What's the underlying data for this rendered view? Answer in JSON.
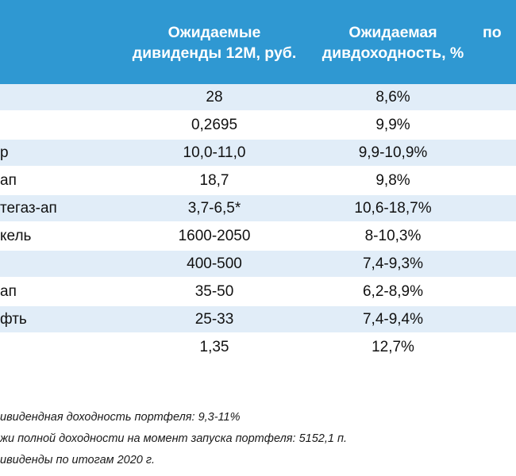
{
  "header": {
    "dividends_label": "Ожидаемые\nдивиденды 12М, руб.",
    "yield_label": "Ожидаемая\nдивдоходность, %",
    "cut_label": "по"
  },
  "rows": [
    {
      "name": "",
      "dividends": "28",
      "yield": "8,6%"
    },
    {
      "name": "",
      "dividends": "0,2695",
      "yield": "9,9%"
    },
    {
      "name": "р",
      "dividends": "10,0-11,0",
      "yield": "9,9-10,9%"
    },
    {
      "name": "ап",
      "dividends": "18,7",
      "yield": "9,8%"
    },
    {
      "name": "тегаз-ап",
      "dividends": "3,7-6,5*",
      "yield": "10,6-18,7%"
    },
    {
      "name": "кель",
      "dividends": "1600-2050",
      "yield": "8-10,3%"
    },
    {
      "name": "",
      "dividends": "400-500",
      "yield": "7,4-9,3%"
    },
    {
      "name": "ап",
      "dividends": "35-50",
      "yield": "6,2-8,9%"
    },
    {
      "name": "фть",
      "dividends": "25-33",
      "yield": "7,4-9,4%"
    },
    {
      "name": "",
      "dividends": "1,35",
      "yield": "12,7%"
    }
  ],
  "notes": [
    "ивидендная доходность портфеля: 9,3-11%",
    "жи полной доходности на момент запуска портфеля: 5152,1 п.",
    "ивиденды по итогам 2020 г."
  ],
  "colors": {
    "header_bg": "#2f98d2",
    "row_alt_bg": "#e1edf8",
    "row_bg": "#ffffff"
  }
}
